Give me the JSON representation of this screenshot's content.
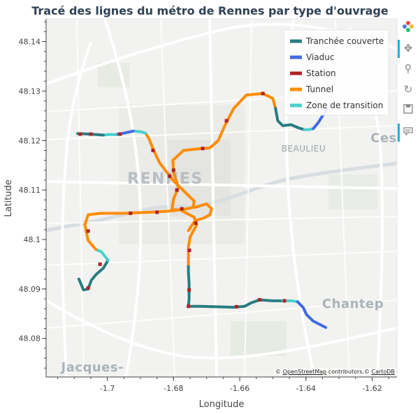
{
  "title": "Tracé des lignes du métro de Rennes par type d'ouvrage",
  "xlabel": "Longitude",
  "ylabel": "Latitude",
  "attribution": {
    "prefix": "© ",
    "osm": "OpenStreetMap",
    "mid": " contributors,© ",
    "carto": "CartoDB"
  },
  "map_labels": [
    {
      "text": "RENNES",
      "lon": -1.6825,
      "lat": 48.1113,
      "kind": "city"
    },
    {
      "text": "BEAULIEU",
      "lon": -1.6407,
      "lat": 48.1178,
      "kind": "district"
    },
    {
      "text": "Chantep",
      "lon": -1.6258,
      "lat": 48.0862,
      "kind": "town"
    },
    {
      "text": "Ces",
      "lon": -1.6165,
      "lat": 48.1197,
      "kind": "town"
    },
    {
      "text": "Jacques-",
      "lon": -1.7045,
      "lat": 48.0733,
      "kind": "town"
    }
  ],
  "toolbar": [
    {
      "name": "bokeh-logo-icon"
    },
    {
      "name": "pan-tool-icon"
    },
    {
      "name": "wheel-zoom-tool-icon"
    },
    {
      "name": "reset-tool-icon"
    },
    {
      "name": "save-tool-icon"
    },
    {
      "name": "hover-tool-icon"
    }
  ],
  "chart_data": {
    "type": "map-lines",
    "title": "Tracé des lignes du métro de Rennes par type d'ouvrage",
    "xlabel": "Longitude",
    "ylabel": "Latitude",
    "xlim": [
      -1.7185,
      -1.6125
    ],
    "ylim": [
      48.0722,
      48.1446
    ],
    "xticks": [
      -1.7,
      -1.68,
      -1.66,
      -1.64,
      -1.62
    ],
    "xtick_labels": [
      "-1.7",
      "-1.68",
      "-1.66",
      "-1.64",
      "-1.62"
    ],
    "yticks": [
      48.08,
      48.09,
      48.1,
      48.11,
      48.12,
      48.13,
      48.14
    ],
    "ytick_labels": [
      "48.08",
      "48.09",
      "48.1",
      "48.11",
      "48.12",
      "48.13",
      "48.14"
    ],
    "legend_position": "top-right",
    "series": [
      {
        "name": "Tranchée couverte",
        "color": "#287d80",
        "width": 4
      },
      {
        "name": "Viaduc",
        "color": "#4169e1",
        "width": 4
      },
      {
        "name": "Station",
        "color": "#b22222",
        "width": 4
      },
      {
        "name": "Tunnel",
        "color": "#ff8c00",
        "width": 4
      },
      {
        "name": "Zone de transition",
        "color": "#48d1cc",
        "width": 4
      }
    ],
    "segments": [
      {
        "type": "Tranchée couverte",
        "points": [
          [
            -1.7086,
            48.092
          ],
          [
            -1.7072,
            48.0898
          ],
          [
            -1.7058,
            48.09
          ],
          [
            -1.7048,
            48.0918
          ],
          [
            -1.7033,
            48.093
          ],
          [
            -1.7012,
            48.0942
          ],
          [
            -1.6998,
            48.0958
          ]
        ]
      },
      {
        "type": "Zone de transition",
        "points": [
          [
            -1.6998,
            48.0958
          ],
          [
            -1.7018,
            48.0975
          ],
          [
            -1.7035,
            48.098
          ]
        ]
      },
      {
        "type": "Tunnel",
        "points": [
          [
            -1.7035,
            48.098
          ],
          [
            -1.7058,
            48.0998
          ],
          [
            -1.7068,
            48.103
          ],
          [
            -1.7058,
            48.105
          ],
          [
            -1.702,
            48.1053
          ],
          [
            -1.695,
            48.1053
          ],
          [
            -1.687,
            48.1055
          ],
          [
            -1.68,
            48.1058
          ],
          [
            -1.676,
            48.1062
          ],
          [
            -1.674,
            48.1065
          ],
          [
            -1.6738,
            48.1078
          ],
          [
            -1.676,
            48.1092
          ],
          [
            -1.6805,
            48.1122
          ],
          [
            -1.6842,
            48.1155
          ],
          [
            -1.686,
            48.118
          ],
          [
            -1.6875,
            48.1205
          ],
          [
            -1.6885,
            48.1215
          ]
        ]
      },
      {
        "type": "Zone de transition",
        "points": [
          [
            -1.6885,
            48.1215
          ],
          [
            -1.69,
            48.1218
          ],
          [
            -1.6922,
            48.1219
          ]
        ]
      },
      {
        "type": "Viaduc",
        "points": [
          [
            -1.6922,
            48.1219
          ],
          [
            -1.695,
            48.1215
          ],
          [
            -1.6975,
            48.1212
          ]
        ]
      },
      {
        "type": "Zone de transition",
        "points": [
          [
            -1.6975,
            48.1212
          ],
          [
            -1.6998,
            48.1212
          ],
          [
            -1.7012,
            48.1211
          ]
        ]
      },
      {
        "type": "Tranchée couverte",
        "points": [
          [
            -1.7012,
            48.1211
          ],
          [
            -1.705,
            48.1213
          ],
          [
            -1.709,
            48.1214
          ]
        ]
      },
      {
        "type": "Tranchée couverte",
        "points": [
          [
            -1.6755,
            48.0865
          ],
          [
            -1.6753,
            48.088
          ],
          [
            -1.6753,
            48.091
          ],
          [
            -1.6755,
            48.0935
          ],
          [
            -1.6755,
            48.095
          ]
        ]
      },
      {
        "type": "Tunnel",
        "points": [
          [
            -1.6755,
            48.095
          ],
          [
            -1.6755,
            48.0985
          ],
          [
            -1.675,
            48.1005
          ],
          [
            -1.673,
            48.103
          ],
          [
            -1.6738,
            48.1045
          ],
          [
            -1.678,
            48.106
          ],
          [
            -1.6805,
            48.106
          ],
          [
            -1.68,
            48.1082
          ],
          [
            -1.6785,
            48.1105
          ],
          [
            -1.68,
            48.1135
          ],
          [
            -1.6802,
            48.116
          ],
          [
            -1.677,
            48.118
          ],
          [
            -1.673,
            48.1183
          ],
          [
            -1.669,
            48.1185
          ],
          [
            -1.6665,
            48.12
          ],
          [
            -1.6645,
            48.123
          ],
          [
            -1.6618,
            48.1265
          ],
          [
            -1.658,
            48.1292
          ],
          [
            -1.653,
            48.1295
          ],
          [
            -1.65,
            48.1285
          ],
          [
            -1.6492,
            48.1265
          ]
        ]
      },
      {
        "type": "Tranchée couverte",
        "points": [
          [
            -1.6492,
            48.1265
          ],
          [
            -1.6485,
            48.124
          ],
          [
            -1.647,
            48.123
          ],
          [
            -1.6445,
            48.1232
          ],
          [
            -1.642,
            48.1225
          ],
          [
            -1.6405,
            48.1222
          ]
        ]
      },
      {
        "type": "Zone de transition",
        "points": [
          [
            -1.6405,
            48.1222
          ],
          [
            -1.639,
            48.1222
          ],
          [
            -1.6378,
            48.1224
          ]
        ]
      },
      {
        "type": "Viaduc",
        "points": [
          [
            -1.6378,
            48.1224
          ],
          [
            -1.6362,
            48.1237
          ],
          [
            -1.6348,
            48.1252
          ],
          [
            -1.6335,
            48.1265
          ]
        ]
      },
      {
        "type": "Tunnel",
        "points": [
          [
            -1.6735,
            48.1065
          ],
          [
            -1.67,
            48.1072
          ],
          [
            -1.6685,
            48.1062
          ],
          [
            -1.669,
            48.105
          ],
          [
            -1.671,
            48.1043
          ],
          [
            -1.6735,
            48.1038
          ],
          [
            -1.6755,
            48.1018
          ]
        ]
      },
      {
        "type": "Tranchée couverte",
        "points": [
          [
            -1.6755,
            48.0865
          ],
          [
            -1.672,
            48.0865
          ],
          [
            -1.667,
            48.0864
          ],
          [
            -1.662,
            48.0863
          ],
          [
            -1.6585,
            48.0865
          ],
          [
            -1.6565,
            48.0872
          ],
          [
            -1.654,
            48.0878
          ],
          [
            -1.65,
            48.0876
          ],
          [
            -1.647,
            48.0876
          ]
        ]
      },
      {
        "type": "Zone de transition",
        "points": [
          [
            -1.647,
            48.0876
          ],
          [
            -1.644,
            48.0876
          ],
          [
            -1.6425,
            48.0874
          ]
        ]
      },
      {
        "type": "Viaduc",
        "points": [
          [
            -1.6425,
            48.0874
          ],
          [
            -1.6408,
            48.0862
          ],
          [
            -1.6398,
            48.0848
          ],
          [
            -1.6378,
            48.0835
          ],
          [
            -1.634,
            48.0822
          ]
        ]
      }
    ],
    "stations": [
      [
        -1.7082,
        48.1213
      ],
      [
        -1.705,
        48.1213
      ],
      [
        -1.6962,
        48.1213
      ],
      [
        -1.7058,
        48.1017
      ],
      [
        -1.7022,
        48.095
      ],
      [
        -1.7058,
        48.0902
      ],
      [
        -1.693,
        48.1053
      ],
      [
        -1.685,
        48.1055
      ],
      [
        -1.6775,
        48.1062
      ],
      [
        -1.6812,
        48.1128
      ],
      [
        -1.6862,
        48.118
      ],
      [
        -1.6755,
        48.0865
      ],
      [
        -1.6753,
        48.0898
      ],
      [
        -1.6752,
        48.0978
      ],
      [
        -1.6733,
        48.1033
      ],
      [
        -1.679,
        48.11
      ],
      [
        -1.68,
        48.114
      ],
      [
        -1.6712,
        48.1184
      ],
      [
        -1.664,
        48.124
      ],
      [
        -1.653,
        48.1295
      ],
      [
        -1.661,
        48.0864
      ],
      [
        -1.654,
        48.0878
      ],
      [
        -1.6465,
        48.0876
      ]
    ]
  }
}
